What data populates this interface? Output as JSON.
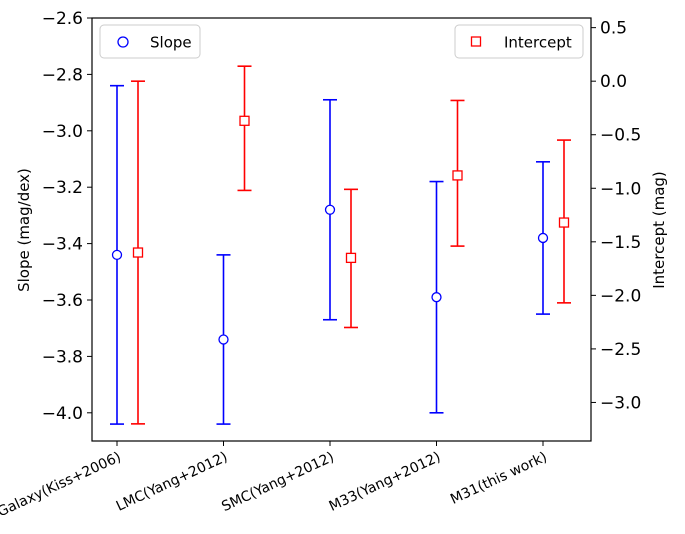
{
  "chart_data": {
    "type": "scatter",
    "title": "",
    "categories": [
      "Galaxy(Kiss+2006)",
      "LMC(Yang+2012)",
      "SMC(Yang+2012)",
      "M33(Yang+2012)",
      "M31(this work)"
    ],
    "left_axis": {
      "label": "Slope (mag/dex)",
      "ylim": [
        -4.1,
        -2.6
      ],
      "ticks": [
        -4.0,
        -3.8,
        -3.6,
        -3.4,
        -3.2,
        -3.0,
        -2.8,
        -2.6
      ]
    },
    "right_axis": {
      "label": "Intercept (mag)",
      "ylim": [
        -3.36,
        0.59
      ],
      "ticks": [
        -3.0,
        -2.5,
        -2.0,
        -1.5,
        -1.0,
        -0.5,
        0.0,
        0.5
      ]
    },
    "series": [
      {
        "name": "Slope",
        "axis": "left",
        "color": "#0000ff",
        "marker": "circle",
        "values": [
          -3.44,
          -3.74,
          -3.28,
          -3.59,
          -3.38
        ],
        "lower": [
          -4.04,
          -4.04,
          -3.67,
          -4.0,
          -3.65
        ],
        "upper": [
          -2.84,
          -3.44,
          -2.89,
          -3.18,
          -3.11
        ]
      },
      {
        "name": "Intercept",
        "axis": "right",
        "color": "#ff0000",
        "marker": "square",
        "values": [
          -1.6,
          -0.37,
          -1.65,
          -0.88,
          -1.32
        ],
        "lower": [
          -3.2,
          -1.02,
          -2.3,
          -1.54,
          -2.07
        ],
        "upper": [
          0.0,
          0.14,
          -1.01,
          -0.18,
          -0.55
        ]
      }
    ],
    "legend": [
      {
        "label": "Slope",
        "placement": "top-left"
      },
      {
        "label": "Intercept",
        "placement": "top-right"
      }
    ],
    "grid": false
  }
}
